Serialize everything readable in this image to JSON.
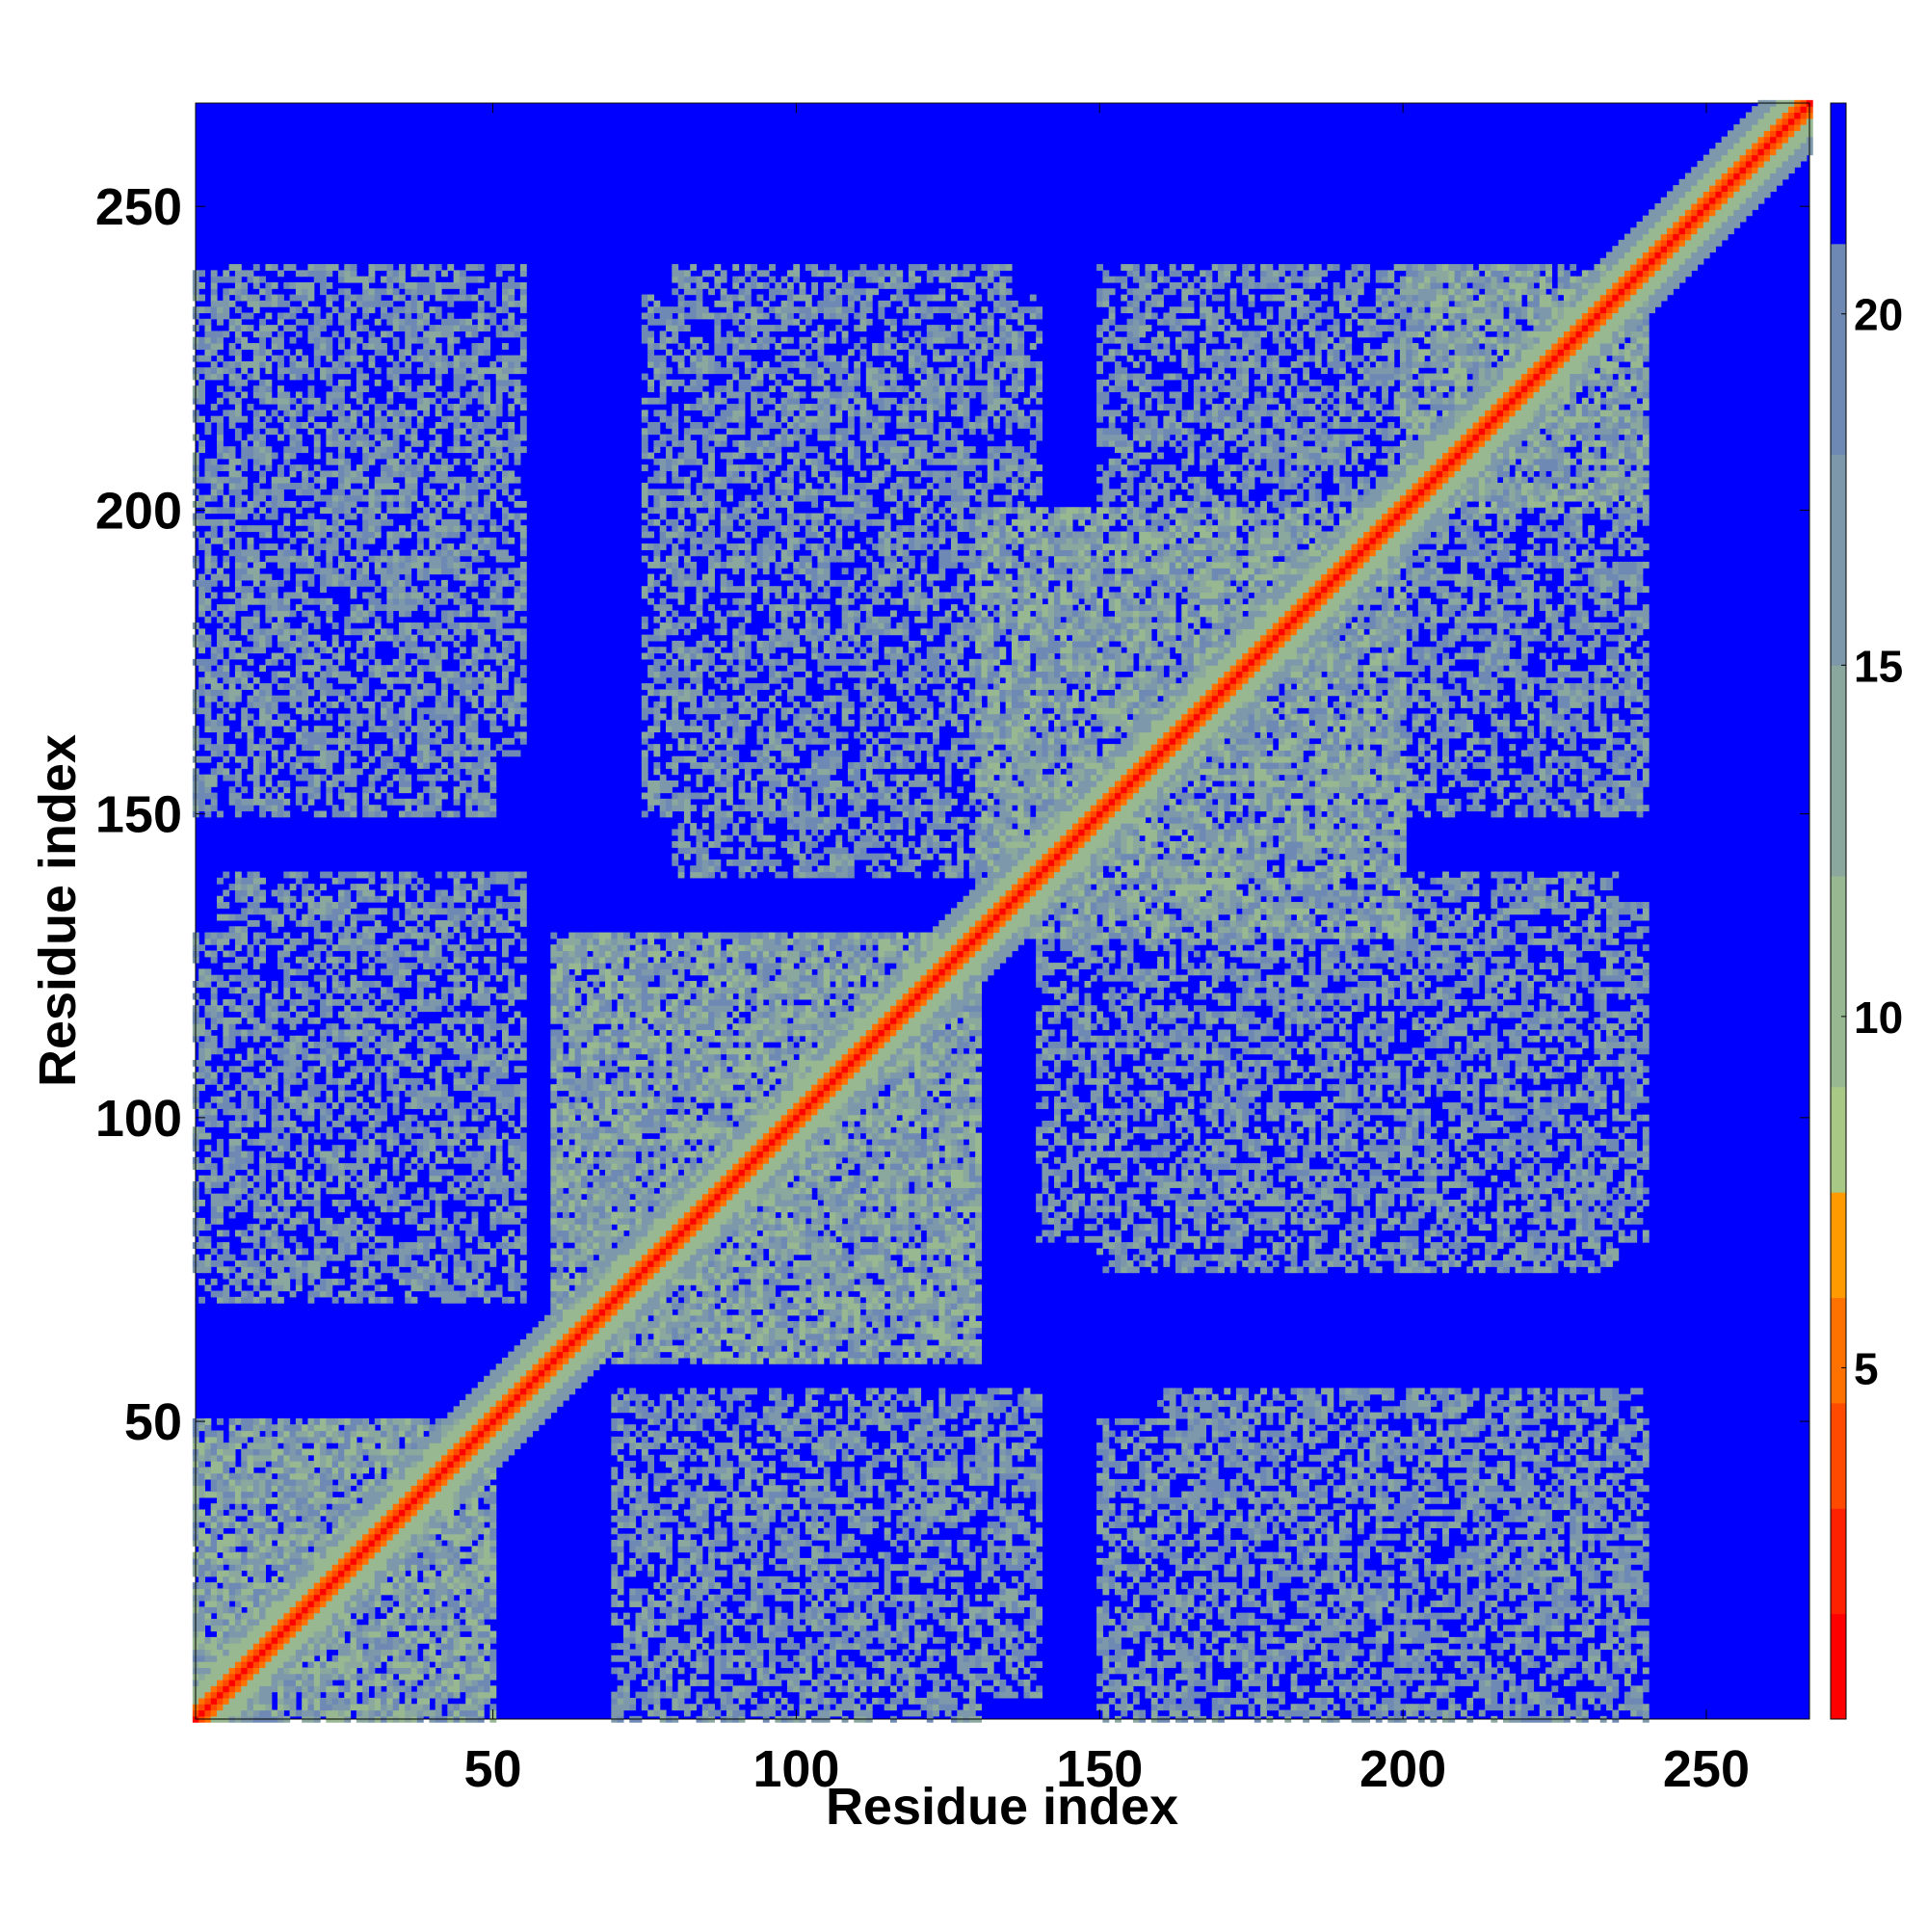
{
  "chart_data": {
    "type": "heatmap",
    "title": "",
    "xlabel": "Residue index",
    "ylabel": "Residue index",
    "xlim": [
      1,
      267
    ],
    "ylim": [
      1,
      267
    ],
    "x_ticks": [
      50,
      100,
      150,
      200,
      250
    ],
    "y_ticks": [
      50,
      100,
      150,
      200,
      250
    ],
    "x_tick_labels": [
      "50",
      "100",
      "150",
      "200",
      "250"
    ],
    "y_tick_labels": [
      "50",
      "100",
      "150",
      "200",
      "250"
    ],
    "grid": false,
    "colorbar": {
      "ticks": [
        5,
        10,
        15,
        20
      ],
      "tick_labels": [
        "5",
        "10",
        "15",
        "20"
      ],
      "range": [
        0,
        23
      ],
      "bins": [
        {
          "from": 0,
          "to": 1.5,
          "color": "#ff0000"
        },
        {
          "from": 1.5,
          "to": 3,
          "color": "#ff2200"
        },
        {
          "from": 3,
          "to": 4.5,
          "color": "#ff4a00"
        },
        {
          "from": 4.5,
          "to": 6,
          "color": "#ff7200"
        },
        {
          "from": 6,
          "to": 7.5,
          "color": "#ff9a00"
        },
        {
          "from": 7.5,
          "to": 9,
          "color": "#a8c886"
        },
        {
          "from": 9,
          "to": 12,
          "color": "#98b892"
        },
        {
          "from": 12,
          "to": 15,
          "color": "#8aa89e"
        },
        {
          "from": 15,
          "to": 18,
          "color": "#7c98aa"
        },
        {
          "from": 18,
          "to": 21,
          "color": "#6e8ab4"
        },
        {
          "from": 21,
          "to": 23,
          "color": "#0000ff"
        }
      ]
    },
    "values_description": "Residue-residue distance map (Angstrom); diagonal distance near 0 (red), contacts shown in orange and grey-green, far pairs (>21) shown in blue.",
    "contact_regions": [
      {
        "x": [
          1,
          50
        ],
        "y": [
          1,
          50
        ],
        "level": "near"
      },
      {
        "x": [
          60,
          130
        ],
        "y": [
          60,
          130
        ],
        "level": "near"
      },
      {
        "x": [
          130,
          200
        ],
        "y": [
          130,
          200
        ],
        "level": "near"
      },
      {
        "x": [
          200,
          240
        ],
        "y": [
          200,
          240
        ],
        "level": "near"
      },
      {
        "x": [
          1,
          50
        ],
        "y": [
          70,
          130
        ],
        "level": "mid"
      },
      {
        "x": [
          1,
          50
        ],
        "y": [
          150,
          240
        ],
        "level": "mid"
      },
      {
        "x": [
          70,
          140
        ],
        "y": [
          5,
          55
        ],
        "level": "mid"
      },
      {
        "x": [
          160,
          240
        ],
        "y": [
          5,
          55
        ],
        "level": "mid"
      },
      {
        "x": [
          140,
          240
        ],
        "y": [
          80,
          135
        ],
        "level": "mid"
      },
      {
        "x": [
          75,
          140
        ],
        "y": [
          150,
          235
        ],
        "level": "mid"
      },
      {
        "x": [
          150,
          240
        ],
        "y": [
          170,
          240
        ],
        "level": "mid"
      }
    ]
  }
}
